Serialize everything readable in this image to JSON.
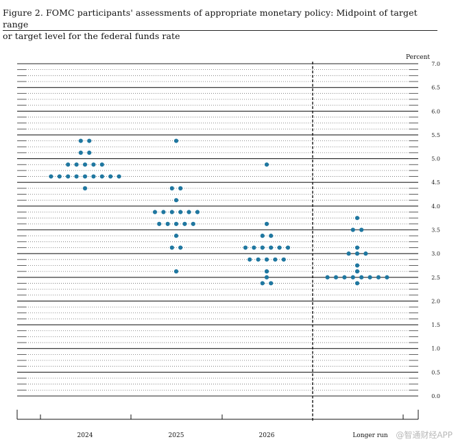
{
  "figure": {
    "title_line1": "Figure 2.  FOMC participants' assessments of appropriate monetary policy:  Midpoint of target range",
    "title_line2": "or target level for the federal funds rate"
  },
  "watermark": "@智通财经APP",
  "chart_data": {
    "type": "scatter",
    "title": "FOMC participants' assessments of appropriate monetary policy: Midpoint of target range or target level for the federal funds rate",
    "ylabel": "Percent",
    "ylim": [
      0,
      7.0
    ],
    "y_ticks": [
      "0.0",
      "0.5",
      "1.0",
      "1.5",
      "2.0",
      "2.5",
      "3.0",
      "3.5",
      "4.0",
      "4.5",
      "5.0",
      "5.5",
      "6.0",
      "6.5",
      "7.0"
    ],
    "categories": [
      "2024",
      "2025",
      "2026",
      "Longer run"
    ],
    "dot_color": "#1f77a0",
    "grid": true,
    "columns": [
      {
        "category": "2024",
        "points": [
          {
            "y": 5.375,
            "count": 2
          },
          {
            "y": 5.125,
            "count": 2
          },
          {
            "y": 4.875,
            "count": 5
          },
          {
            "y": 4.625,
            "count": 9
          },
          {
            "y": 4.375,
            "count": 1
          }
        ]
      },
      {
        "category": "2025",
        "points": [
          {
            "y": 5.375,
            "count": 1
          },
          {
            "y": 4.375,
            "count": 2
          },
          {
            "y": 4.125,
            "count": 1
          },
          {
            "y": 3.875,
            "count": 6
          },
          {
            "y": 3.625,
            "count": 5
          },
          {
            "y": 3.375,
            "count": 1
          },
          {
            "y": 3.125,
            "count": 2
          },
          {
            "y": 2.625,
            "count": 1
          }
        ]
      },
      {
        "category": "2026",
        "points": [
          {
            "y": 4.875,
            "count": 1
          },
          {
            "y": 3.625,
            "count": 1
          },
          {
            "y": 3.375,
            "count": 2
          },
          {
            "y": 3.125,
            "count": 6
          },
          {
            "y": 2.875,
            "count": 5
          },
          {
            "y": 2.625,
            "count": 1
          },
          {
            "y": 2.5,
            "count": 1
          },
          {
            "y": 2.375,
            "count": 2
          }
        ]
      },
      {
        "category": "Longer run",
        "points": [
          {
            "y": 3.75,
            "count": 1
          },
          {
            "y": 3.5,
            "count": 2
          },
          {
            "y": 3.125,
            "count": 1
          },
          {
            "y": 3.0,
            "count": 3
          },
          {
            "y": 2.75,
            "count": 1
          },
          {
            "y": 2.625,
            "count": 1
          },
          {
            "y": 2.5,
            "count": 8
          },
          {
            "y": 2.375,
            "count": 1
          }
        ]
      }
    ]
  }
}
